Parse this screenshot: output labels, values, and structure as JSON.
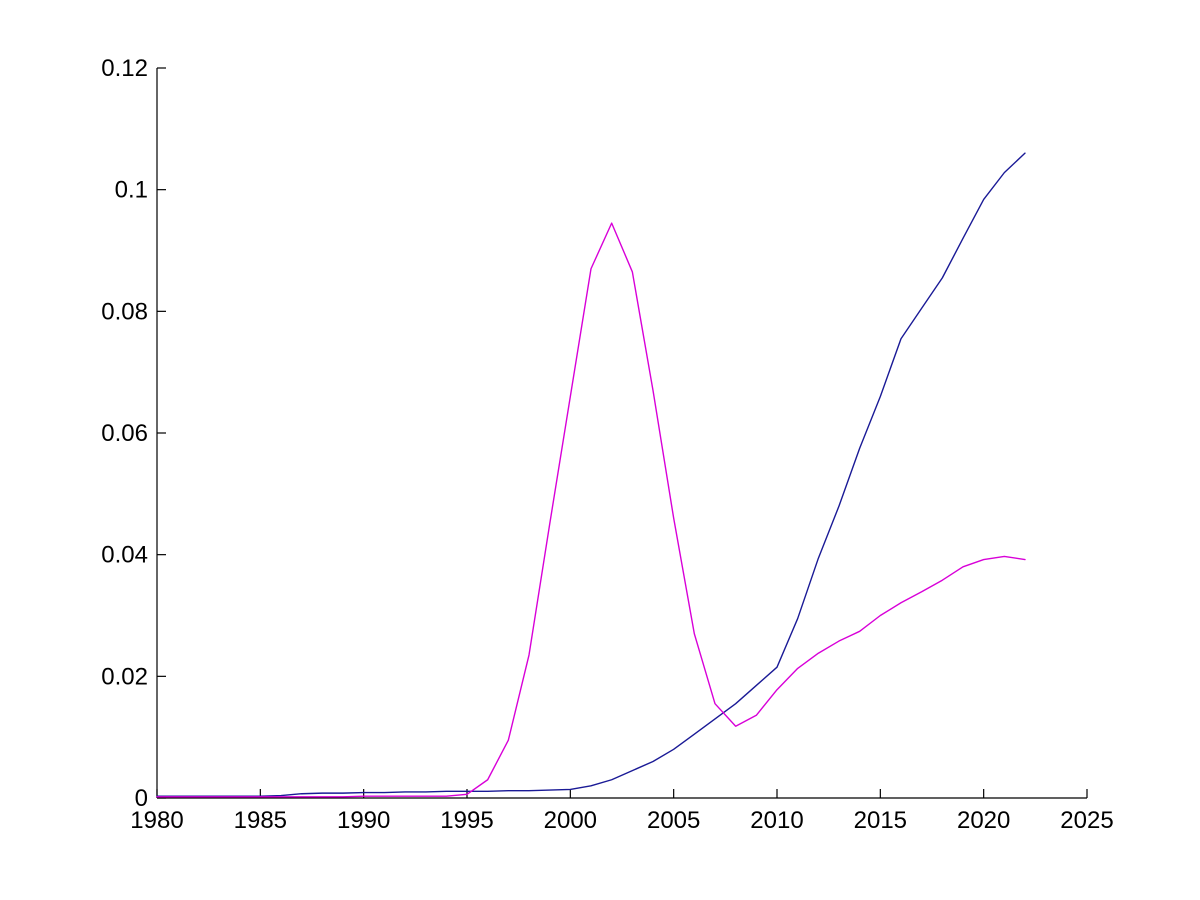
{
  "figure": {
    "background": "#ffffff",
    "title": "",
    "legend": null
  },
  "chart_data": {
    "type": "line",
    "title": "",
    "xlabel": "",
    "ylabel": "",
    "grid": false,
    "legend_position": "none",
    "xlim": [
      1980,
      2025
    ],
    "ylim": [
      0,
      0.12
    ],
    "xticks": [
      1980,
      1985,
      1990,
      1995,
      2000,
      2005,
      2010,
      2015,
      2020,
      2025
    ],
    "xtick_labels": [
      "1980",
      "1985",
      "1990",
      "1995",
      "2000",
      "2005",
      "2010",
      "2015",
      "2020",
      "2025"
    ],
    "yticks": [
      0,
      0.02,
      0.04,
      0.06,
      0.08,
      0.1,
      0.12
    ],
    "ytick_labels": [
      "0",
      "0.02",
      "0.04",
      "0.06",
      "0.08",
      "0.1",
      "0.12"
    ],
    "axis_color": "#000000",
    "tick_label_color": "#000000",
    "x": [
      1980,
      1981,
      1982,
      1983,
      1984,
      1985,
      1986,
      1987,
      1988,
      1989,
      1990,
      1991,
      1992,
      1993,
      1994,
      1995,
      1996,
      1997,
      1998,
      1999,
      2000,
      2001,
      2002,
      2003,
      2004,
      2005,
      2006,
      2007,
      2008,
      2009,
      2010,
      2011,
      2012,
      2013,
      2014,
      2015,
      2016,
      2017,
      2018,
      2019,
      2020,
      2021,
      2022
    ],
    "series": [
      {
        "name": "dark-blue-line",
        "color": "#1a1a96",
        "values": [
          0.0003,
          0.0003,
          0.0003,
          0.0003,
          0.0003,
          0.0003,
          0.0004,
          0.0007,
          0.0008,
          0.0008,
          0.0009,
          0.0009,
          0.001,
          0.001,
          0.0011,
          0.0011,
          0.0011,
          0.0012,
          0.0012,
          0.0013,
          0.0014,
          0.002,
          0.003,
          0.0045,
          0.006,
          0.008,
          0.0105,
          0.013,
          0.0155,
          0.0185,
          0.0215,
          0.0295,
          0.0394,
          0.048,
          0.0575,
          0.066,
          0.0755,
          0.0805,
          0.0855,
          0.092,
          0.0984,
          0.1028,
          0.106
        ]
      },
      {
        "name": "magenta-line",
        "color": "#d800d8",
        "values": [
          0.0002,
          0.0002,
          0.0002,
          0.0002,
          0.0002,
          0.0002,
          0.0002,
          0.0002,
          0.0002,
          0.0002,
          0.0003,
          0.0003,
          0.0003,
          0.0003,
          0.0003,
          0.0006,
          0.003,
          0.0095,
          0.0235,
          0.045,
          0.066,
          0.087,
          0.0945,
          0.0865,
          0.067,
          0.046,
          0.027,
          0.0155,
          0.0118,
          0.0136,
          0.0178,
          0.0213,
          0.0238,
          0.0258,
          0.0274,
          0.03,
          0.0321,
          0.0339,
          0.0358,
          0.038,
          0.0392,
          0.0397,
          0.0392
        ]
      }
    ]
  }
}
